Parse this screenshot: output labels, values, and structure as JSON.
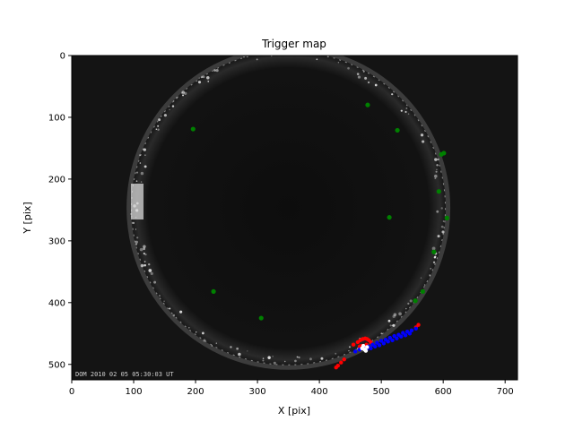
{
  "chart_data": {
    "type": "scatter",
    "title": "Trigger map",
    "xlabel": "X [pix]",
    "ylabel": "Y [pix]",
    "xlim": [
      0,
      720
    ],
    "ylim": [
      525,
      0
    ],
    "y_inverted": true,
    "grid": false,
    "background": "all-sky camera night image (fisheye, dark sky with horizon ring)",
    "xticks": [
      0,
      100,
      200,
      300,
      400,
      500,
      600,
      700
    ],
    "yticks": [
      0,
      100,
      200,
      300,
      400,
      500
    ],
    "image_caption": "DOM 2010 02 05 05:30:03 UT",
    "sky_circle": {
      "cx": 350,
      "cy": 247,
      "r": 258
    },
    "series": [
      {
        "marker": "circle",
        "color": "#008000",
        "x": [
          196,
          478,
          526,
          597,
          601,
          593,
          513,
          606,
          585,
          229,
          306,
          567,
          555
        ],
        "y": [
          119,
          80,
          121,
          160,
          158,
          220,
          262,
          263,
          318,
          382,
          425,
          382,
          397
        ]
      },
      {
        "marker": "dot",
        "color": "#ff0000",
        "x": [
          430,
          435,
          440,
          455,
          462,
          466,
          470,
          474,
          477,
          480,
          483,
          468,
          472,
          476,
          465,
          556,
          560,
          427
        ],
        "y": [
          502,
          497,
          492,
          468,
          464,
          461,
          459,
          458,
          459,
          461,
          464,
          470,
          472,
          468,
          471,
          440,
          436,
          505
        ]
      },
      {
        "marker": "dot",
        "color": "#0000ff",
        "x": [
          458,
          465,
          472,
          479,
          486,
          493,
          500,
          507,
          514,
          521,
          528,
          535,
          542,
          549,
          556,
          476,
          483,
          490,
          497,
          504,
          511,
          518,
          525,
          532,
          539,
          546
        ],
        "y": [
          479,
          476,
          474,
          471,
          468,
          465,
          462,
          460,
          457,
          454,
          452,
          449,
          447,
          445,
          442,
          476,
          474,
          471,
          469,
          466,
          463,
          461,
          458,
          455,
          453,
          450
        ]
      },
      {
        "marker": "dot",
        "color": "#ffffff",
        "x": [
          469,
          473,
          477,
          471,
          475
        ],
        "y": [
          474,
          476,
          472,
          470,
          478
        ]
      }
    ]
  }
}
